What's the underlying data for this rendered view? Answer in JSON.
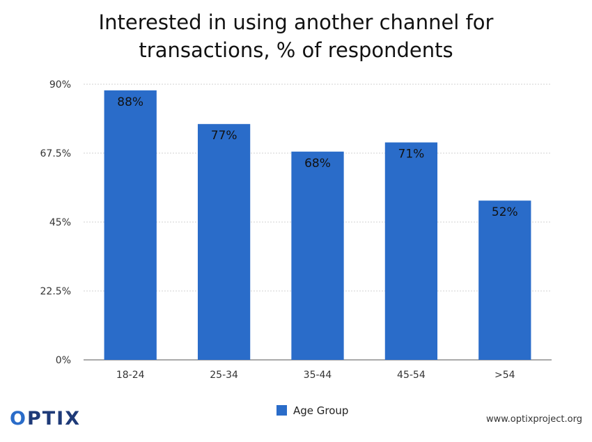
{
  "chart_data": {
    "type": "bar",
    "title_line1": "Interested in using another channel for",
    "title_line2": "transactions, % of respondents",
    "categories": [
      "18-24",
      "25-34",
      "35-44",
      "45-54",
      ">54"
    ],
    "series": [
      {
        "name": "Age Group",
        "values": [
          88,
          77,
          68,
          71,
          52
        ],
        "labels": [
          "88%",
          "77%",
          "68%",
          "71%",
          "52%"
        ],
        "color": "#2a6cc9"
      }
    ],
    "ylim": [
      0,
      90
    ],
    "yticks": [
      0,
      22.5,
      45,
      67.5,
      90
    ],
    "ytick_labels": [
      "0%",
      "22.5%",
      "45%",
      "67.5%",
      "90%"
    ],
    "grid": true,
    "legend_position": "bottom"
  },
  "branding": {
    "logo_prefix": "O",
    "logo_rest": "PTIX",
    "website": "www.optixproject.org"
  }
}
